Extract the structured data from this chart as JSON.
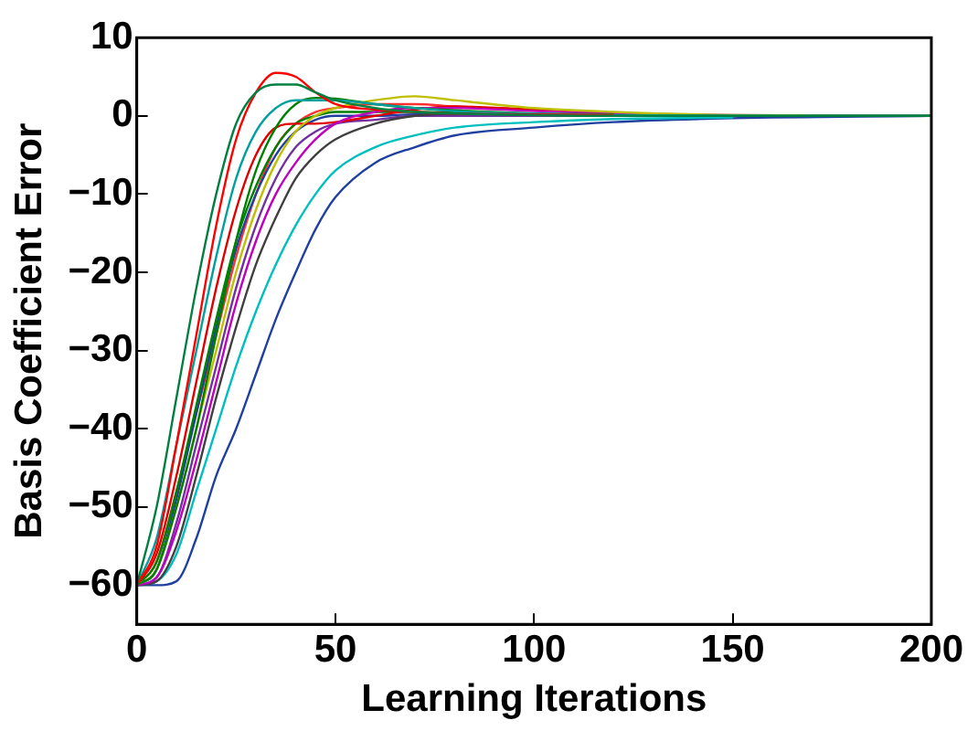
{
  "chart_data": {
    "type": "line",
    "xlabel": "Learning Iterations",
    "ylabel": "Basis Coefficient Error",
    "x": [
      0,
      5,
      10,
      15,
      20,
      25,
      30,
      35,
      40,
      45,
      50,
      60,
      70,
      80,
      100,
      120,
      150,
      200
    ],
    "xlim": [
      0,
      200
    ],
    "xticks": [
      0,
      50,
      100,
      150,
      200
    ],
    "ylim": [
      -65,
      10
    ],
    "yticks": [
      -60,
      -50,
      -40,
      -30,
      -20,
      -10,
      0,
      10
    ],
    "legend": false,
    "marker": "none",
    "line_style": "solid",
    "series": [
      {
        "color": "#008040",
        "values": [
          -60,
          -50,
          -36,
          -22,
          -10,
          -1,
          3,
          4,
          4,
          3,
          2,
          1,
          0.5,
          0.3,
          0.1,
          0,
          0,
          0
        ]
      },
      {
        "color": "#ff0000",
        "values": [
          -60,
          -55,
          -42,
          -28,
          -14,
          -3,
          3,
          5.5,
          5,
          3,
          1.5,
          0.8,
          0.5,
          0.3,
          0.2,
          0.1,
          null,
          null
        ]
      },
      {
        "color": "#00a0a0",
        "values": [
          -60,
          -54,
          -42,
          -30,
          -18,
          -8,
          -2,
          1,
          2,
          2,
          2,
          1.5,
          1,
          0.6,
          0.3,
          0.1,
          0,
          0
        ]
      },
      {
        "color": "#008000",
        "values": [
          -60,
          -58,
          -50,
          -40,
          -28,
          -16,
          -7,
          -1.5,
          1.5,
          2.3,
          2.2,
          1.5,
          1,
          0.7,
          0.3,
          0.2,
          null,
          null
        ]
      },
      {
        "color": "#bfbf00",
        "values": [
          -60,
          -58,
          -50,
          -40,
          -30,
          -20,
          -12,
          -6,
          -2,
          0,
          1,
          2,
          2.5,
          2,
          1,
          0.5,
          0.1,
          0
        ]
      },
      {
        "color": "#bf00bf",
        "values": [
          -60,
          -59,
          -53,
          -44,
          -34,
          -24,
          -16,
          -10,
          -6,
          -3,
          -1,
          0.5,
          1,
          1,
          0.6,
          0.3,
          0.1,
          0
        ]
      },
      {
        "color": "#404040",
        "values": [
          -60,
          -59.5,
          -55,
          -46,
          -36,
          -27,
          -19,
          -13,
          -8,
          -5,
          -3,
          -1,
          0,
          0.3,
          0.2,
          0.1,
          0,
          0
        ]
      },
      {
        "color": "#00bfbf",
        "values": [
          -60,
          -59.5,
          -56,
          -48,
          -40,
          -32,
          -25,
          -19,
          -14,
          -10,
          -7,
          -4,
          -2.5,
          -1.5,
          -0.8,
          -0.4,
          -0.2,
          null
        ]
      },
      {
        "color": "#2040a0",
        "values": [
          -60,
          -60,
          -59.5,
          -54,
          -46,
          -40,
          -33,
          -26,
          -20,
          -14.5,
          -10.4,
          -6,
          -4,
          -2.5,
          -1.5,
          -0.8,
          -0.3,
          0
        ]
      },
      {
        "color": "#e00000",
        "values": [
          -60,
          -56,
          -46,
          -34,
          -22,
          -12,
          -5,
          -1.5,
          -1,
          -1,
          -0.8,
          0,
          0.8,
          1.2,
          0.8,
          0.4,
          null,
          null
        ]
      },
      {
        "color": "#7030a0",
        "values": [
          -60,
          -59,
          -52,
          -42,
          -32,
          -22,
          -14,
          -8,
          -4,
          -2,
          -1,
          -0.5,
          0,
          0,
          0,
          0,
          null,
          null
        ]
      },
      {
        "color": "#008000",
        "values": [
          -60,
          -57,
          -48,
          -37,
          -26,
          -16,
          -9,
          -4,
          -1,
          0,
          0.5,
          0.5,
          0.5,
          0.4,
          0.2,
          null,
          null,
          null
        ]
      },
      {
        "color": "#2040a0",
        "values": [
          -60,
          -58,
          -49,
          -38,
          -27,
          -17,
          -10,
          -5,
          -2,
          -0.5,
          0,
          0,
          0.2,
          0.2,
          0.1,
          0,
          null,
          null
        ]
      },
      {
        "color": "#ff3030",
        "values": [
          -60,
          -57,
          -48,
          -38,
          -28,
          -18,
          -10,
          -4,
          -1,
          0.5,
          1,
          1.5,
          1.5,
          1.2,
          0.7,
          0.3,
          null,
          null
        ]
      }
    ]
  }
}
